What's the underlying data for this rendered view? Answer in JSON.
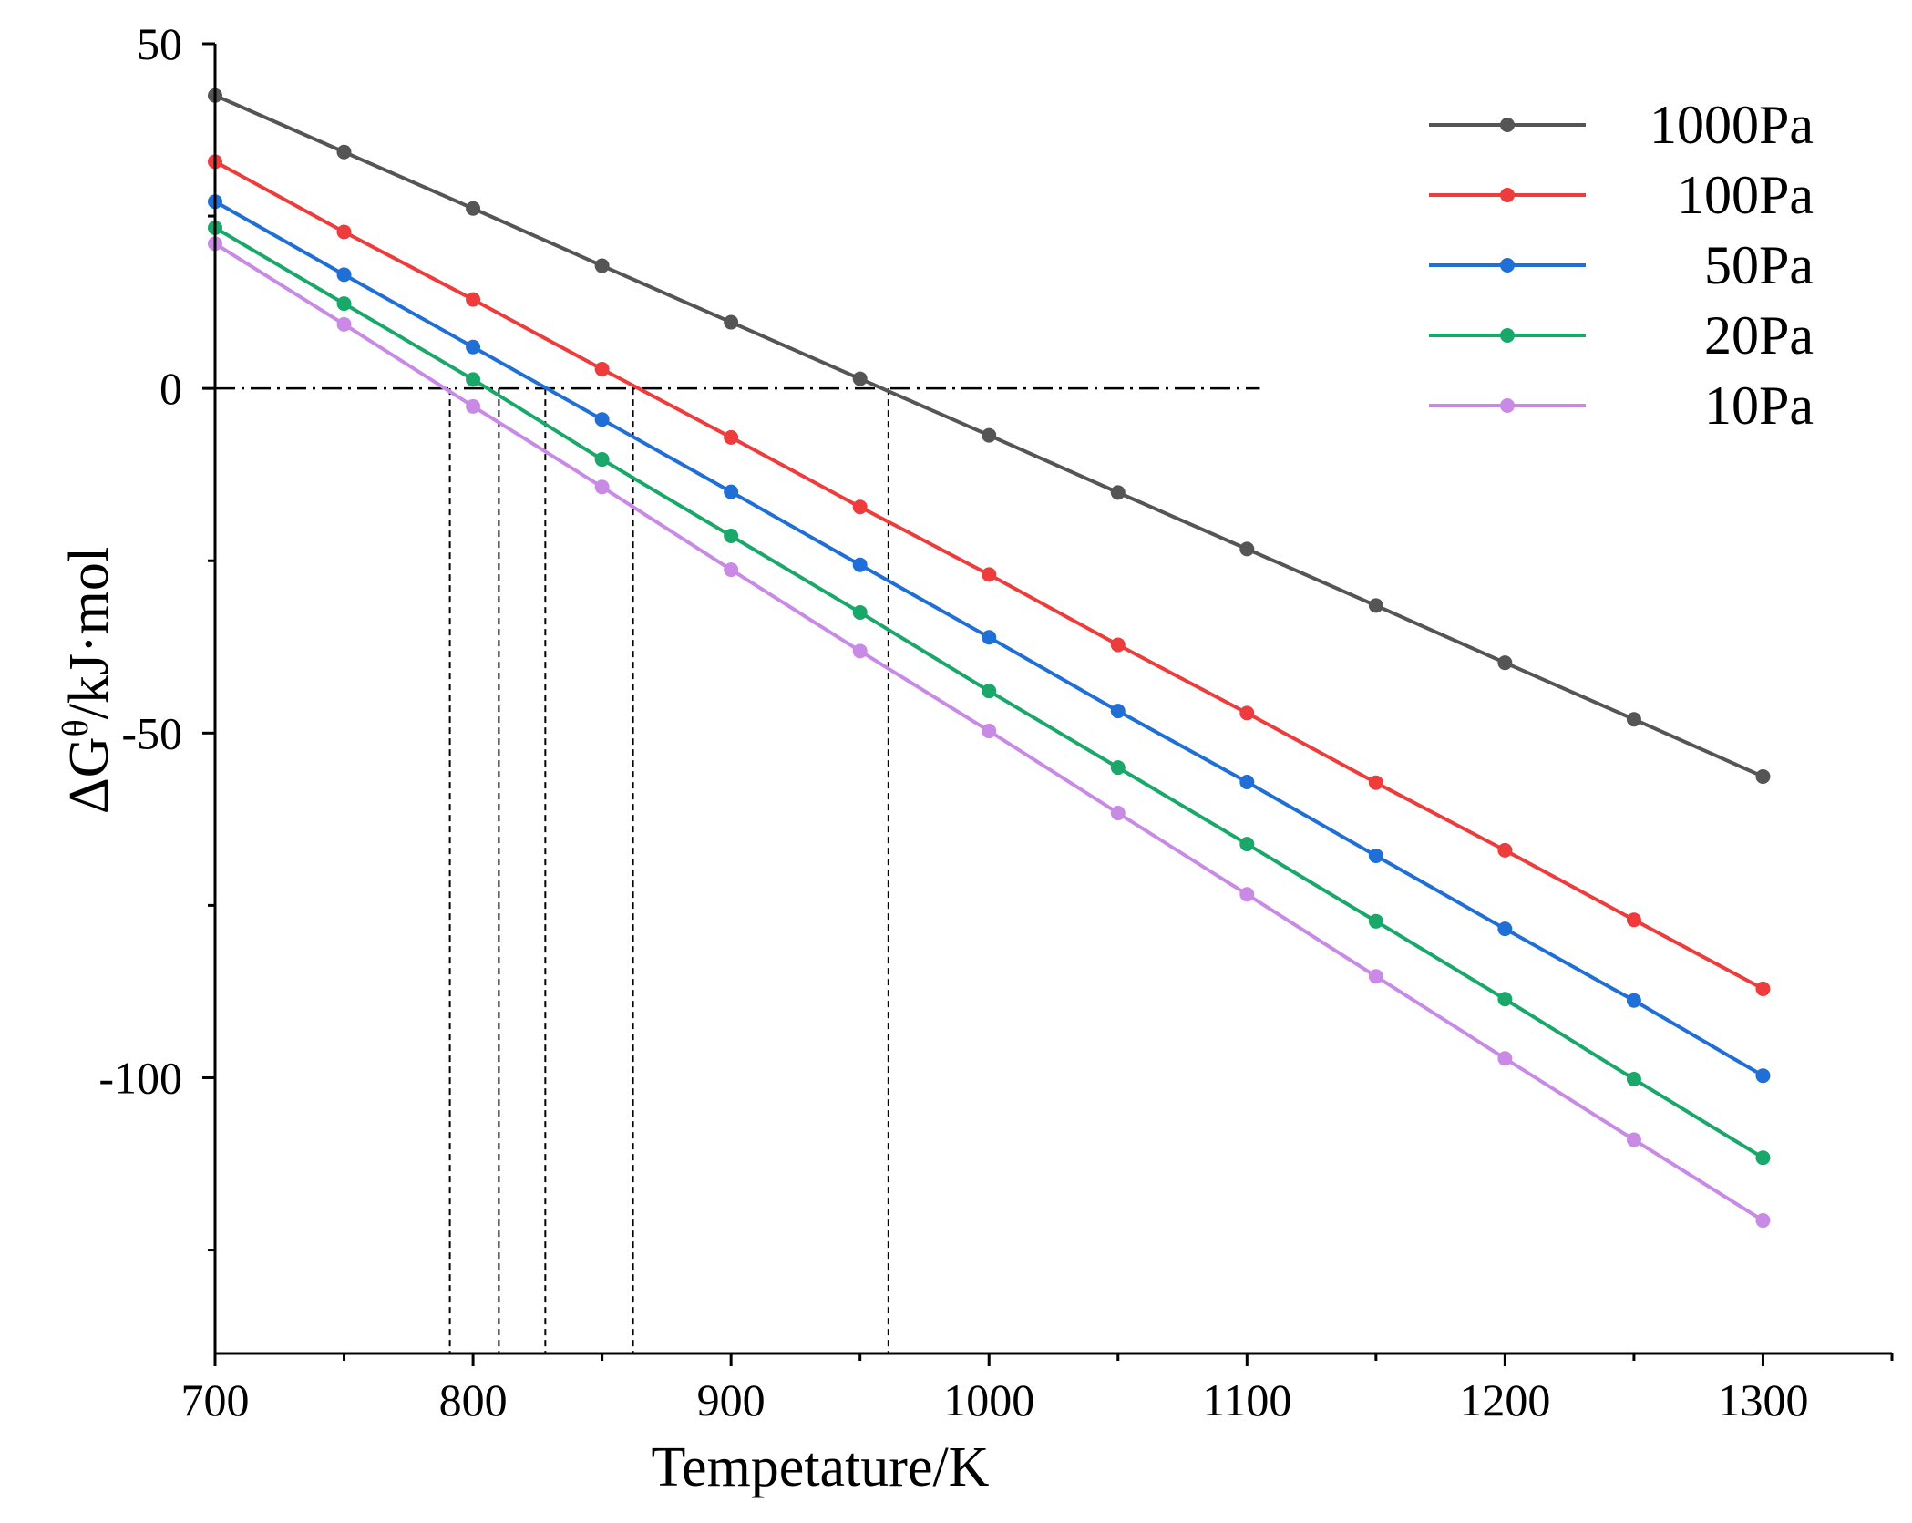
{
  "chart_data": {
    "type": "line",
    "title": "",
    "xlabel": "Tempetature/K",
    "ylabel": "ΔG",
    "ylabel_sup": "θ",
    "ylabel_rest": "/kJ·mol",
    "xlim": [
      700,
      1350
    ],
    "ylim": [
      -140,
      50
    ],
    "x": [
      700,
      750,
      800,
      850,
      900,
      950,
      1000,
      1050,
      1100,
      1150,
      1200,
      1250,
      1300
    ],
    "x_ticks": [
      "700",
      "800",
      "900",
      "1000",
      "1100",
      "1200",
      "1300"
    ],
    "y_ticks": [
      "50",
      "0",
      "-50",
      "-100"
    ],
    "grid": false,
    "legend_position": "top-right",
    "series": [
      {
        "name": "1000Pa",
        "color": "#555555",
        "values": [
          42.5,
          34.3,
          26.1,
          17.8,
          9.6,
          1.4,
          -6.8,
          -15.1,
          -23.3,
          -31.5,
          -39.8,
          -48.0,
          -56.3
        ]
      },
      {
        "name": "100Pa",
        "color": "#ee3b3b",
        "values": [
          32.9,
          22.7,
          12.9,
          2.8,
          -7.1,
          -17.2,
          -27.0,
          -37.2,
          -47.1,
          -57.2,
          -67.0,
          -77.1,
          -87.1
        ]
      },
      {
        "name": "50Pa",
        "color": "#1f6fd6",
        "values": [
          27.1,
          16.5,
          6.0,
          -4.5,
          -15.0,
          -25.6,
          -36.1,
          -46.8,
          -57.1,
          -67.8,
          -78.4,
          -88.8,
          -99.7
        ]
      },
      {
        "name": "20Pa",
        "color": "#1aa86a",
        "values": [
          23.3,
          12.3,
          1.3,
          -10.3,
          -21.4,
          -32.5,
          -43.9,
          -55.0,
          -66.1,
          -77.3,
          -88.6,
          -100.2,
          -111.6
        ]
      },
      {
        "name": "10Pa",
        "color": "#c98ae6",
        "values": [
          21.0,
          9.3,
          -2.6,
          -14.3,
          -26.3,
          -38.1,
          -49.7,
          -61.6,
          -73.4,
          -85.3,
          -97.2,
          -109.0,
          -120.7
        ]
      }
    ],
    "annotations": {
      "zero_line": {
        "y": 0,
        "x_from": 700,
        "x_to": 1105,
        "style": "dash-dot"
      },
      "crossing_markers": [
        {
          "series": "10Pa",
          "x": 791
        },
        {
          "series": "20Pa",
          "x": 810
        },
        {
          "series": "50Pa",
          "x": 828
        },
        {
          "series": "100Pa",
          "x": 862
        },
        {
          "series": "1000Pa",
          "x": 961
        }
      ]
    }
  }
}
